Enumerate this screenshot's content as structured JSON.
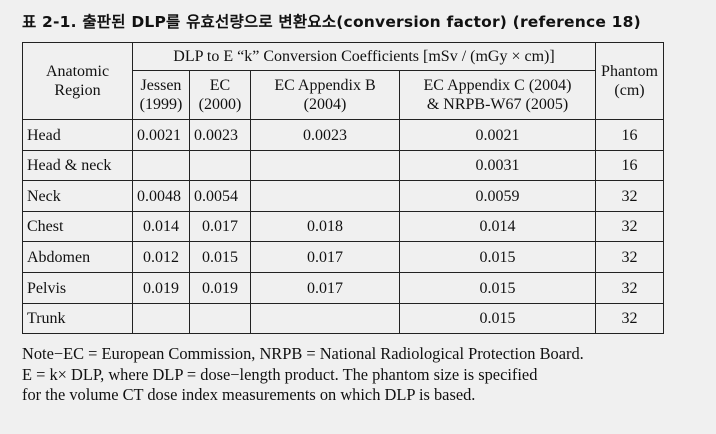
{
  "document": {
    "title": "표 2-1. 출판된 DLP를 유효선량으로 변환요소(conversion factor) (reference 18)",
    "header": {
      "region": [
        "Anatomic",
        "Region"
      ],
      "group": "DLP to E “k” Conversion Coefficients [mSv / (mGy × cm)]",
      "phantom": [
        "Phantom",
        "(cm)"
      ],
      "columns": [
        [
          "Jessen",
          "(1999)"
        ],
        [
          "EC",
          "(2000)"
        ],
        [
          "EC Appendix B",
          "(2004)"
        ],
        [
          "EC Appendix C (2004)",
          "& NRPB-W67 (2005)"
        ]
      ]
    },
    "rows": [
      {
        "region": "Head",
        "jessen": "0.0021",
        "ec": "0.0023",
        "ecb": "0.0023",
        "ecc": "0.0021",
        "phantom": "16"
      },
      {
        "region": "Head & neck",
        "jessen": "",
        "ec": "",
        "ecb": "",
        "ecc": "0.0031",
        "phantom": "16"
      },
      {
        "region": "Neck",
        "jessen": "0.0048",
        "ec": "0.0054",
        "ecb": "",
        "ecc": "0.0059",
        "phantom": "32"
      },
      {
        "region": "Chest",
        "jessen": "0.014",
        "ec": "0.017",
        "ecb": "0.018",
        "ecc": "0.014",
        "phantom": "32"
      },
      {
        "region": "Abdomen",
        "jessen": "0.012",
        "ec": "0.015",
        "ecb": "0.017",
        "ecc": "0.015",
        "phantom": "32"
      },
      {
        "region": "Pelvis",
        "jessen": "0.019",
        "ec": "0.019",
        "ecb": "0.017",
        "ecc": "0.015",
        "phantom": "32"
      },
      {
        "region": "Trunk",
        "jessen": "",
        "ec": "",
        "ecb": "",
        "ecc": "0.015",
        "phantom": "32"
      }
    ],
    "note": [
      "Note−EC = European Commission, NRPB = National Radiological Protection Board.",
      "E = k× DLP, where DLP = dose−length product. The phantom size is specified",
      "for the volume CT dose index measurements on which DLP is based."
    ]
  }
}
